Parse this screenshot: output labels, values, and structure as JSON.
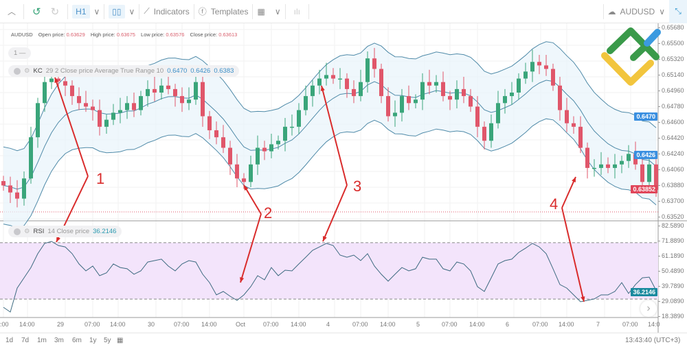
{
  "toolbar": {
    "timeframe": "H1",
    "indicators": "Indicators",
    "templates": "Templates",
    "symbol": "AUDUSD"
  },
  "legend": {
    "symbol": "AUDUSD",
    "open_label": "Open price:",
    "open": "0.63629",
    "high_label": "High price:",
    "high": "0.63675",
    "low_label": "Low price:",
    "low": "0.63576",
    "close_label": "Close price:",
    "close": "0.63613"
  },
  "pane_counter": "1 —",
  "kc": {
    "name": "KC",
    "params": "29 2 Close price Average True Range 10",
    "upper": "0.6470",
    "middle": "0.6426",
    "lower": "0.6383"
  },
  "rsi": {
    "name": "RSI",
    "params": "14 Close price",
    "value": "36.2146"
  },
  "price_axis": [
    "0.65680",
    "0.65500",
    "0.65320",
    "0.65140",
    "0.64960",
    "0.64780",
    "0.64600",
    "0.64420",
    "0.64240",
    "0.64060",
    "0.63880",
    "0.63700",
    "0.63520"
  ],
  "price_badges": {
    "upper": "0.6470",
    "middle": "0.6426",
    "last": "0.63852"
  },
  "rsi_axis": [
    "82.5890",
    "71.8890",
    "61.1890",
    "50.4890",
    "39.7890",
    "29.0890",
    "18.3890"
  ],
  "time_axis": [
    ":00",
    "14:00",
    "29",
    "07:00",
    "14:00",
    "30",
    "07:00",
    "14:00",
    "Oct",
    "07:00",
    "14:00",
    "4",
    "07:00",
    "14:00",
    "5",
    "07:00",
    "14:00",
    "6",
    "07:00",
    "14:00",
    "7",
    "07:00",
    "14:0"
  ],
  "ranges": [
    "1d",
    "7d",
    "1m",
    "3m",
    "6m",
    "1y",
    "5y"
  ],
  "clock": "13:43:40 (UTC+3)",
  "annotations": [
    "1",
    "2",
    "3",
    "4"
  ],
  "colors": {
    "up": "#3aa57a",
    "down": "#e0566a",
    "band": "#4f8aa8",
    "rsi_fill": "#f3e4fb",
    "accent": "#3a8fc8",
    "arrow": "#d92b2b",
    "logo_green": "#3a9a4a",
    "logo_blue": "#3b9ae0",
    "logo_yellow": "#f2c53d"
  },
  "chart_data": {
    "type": "candlestick",
    "price_range": [
      0.6352,
      0.6568
    ],
    "rsi_range": [
      18.389,
      82.589
    ],
    "rsi_levels": [
      30,
      70
    ],
    "closes": [
      0.639,
      0.6382,
      0.6375,
      0.6398,
      0.6445,
      0.6484,
      0.6508,
      0.6512,
      0.6509,
      0.6504,
      0.6492,
      0.6484,
      0.648,
      0.6476,
      0.6457,
      0.6465,
      0.6473,
      0.6476,
      0.6484,
      0.6476,
      0.6492,
      0.65,
      0.6496,
      0.6504,
      0.65,
      0.6492,
      0.6484,
      0.6488,
      0.6508,
      0.6469,
      0.6453,
      0.6445,
      0.6433,
      0.6414,
      0.6398,
      0.6394,
      0.6414,
      0.6433,
      0.6429,
      0.6437,
      0.6441,
      0.6457,
      0.6457,
      0.6476,
      0.6492,
      0.6504,
      0.6512,
      0.6516,
      0.6512,
      0.6512,
      0.65,
      0.6492,
      0.6508,
      0.6535,
      0.6523,
      0.6492,
      0.6469,
      0.6473,
      0.6492,
      0.6484,
      0.6488,
      0.6508,
      0.6504,
      0.6508,
      0.6492,
      0.6488,
      0.65,
      0.6492,
      0.648,
      0.6457,
      0.6441,
      0.6461,
      0.6484,
      0.6492,
      0.6496,
      0.6512,
      0.652,
      0.6531,
      0.6527,
      0.6523,
      0.6504,
      0.6476,
      0.6461,
      0.6457,
      0.6433,
      0.641,
      0.641,
      0.6414,
      0.641,
      0.6414,
      0.6418,
      0.6426,
      0.6414,
      0.6394,
      0.6414,
      0.6385
    ],
    "rsi": [
      24.2,
      20.8,
      37.8,
      45.1,
      52.4,
      62.2,
      69.5,
      70.9,
      68.0,
      67.0,
      62.2,
      54.9,
      50.0,
      53.4,
      46.6,
      48.6,
      54.9,
      52.4,
      51.5,
      47.6,
      50.0,
      56.3,
      57.3,
      58.3,
      53.4,
      50.0,
      54.9,
      57.3,
      56.3,
      47.6,
      41.7,
      33.0,
      35.4,
      32.0,
      29.1,
      33.0,
      38.8,
      46.6,
      43.7,
      52.4,
      46.6,
      50.5,
      50.0,
      54.9,
      59.7,
      64.6,
      67.0,
      69.5,
      68.0,
      61.2,
      59.7,
      61.2,
      57.3,
      62.2,
      53.4,
      47.6,
      42.7,
      47.6,
      52.4,
      50.0,
      51.5,
      59.7,
      58.3,
      58.3,
      51.5,
      50.0,
      56.3,
      54.9,
      50.0,
      38.8,
      35.4,
      45.1,
      54.9,
      57.3,
      58.3,
      63.1,
      66.1,
      69.5,
      67.0,
      62.2,
      51.5,
      40.3,
      37.8,
      33.0,
      28.1,
      29.1,
      30.1,
      33.0,
      33.0,
      35.4,
      41.7,
      34.0,
      40.3,
      45.1,
      45.6,
      36.2
    ]
  }
}
